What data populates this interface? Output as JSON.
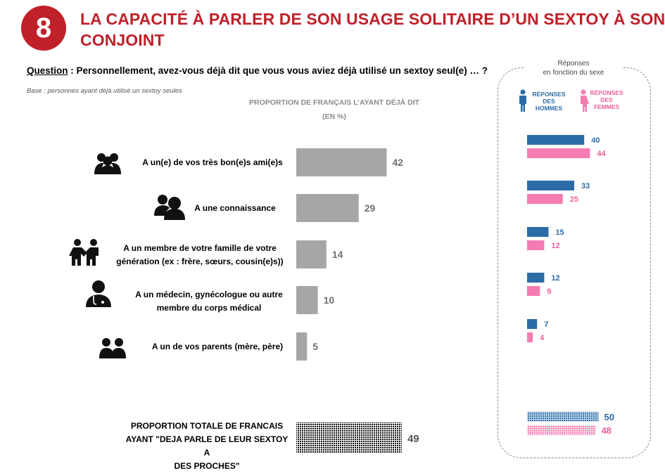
{
  "header": {
    "number": "8",
    "title_line1": "LA CAPACITÉ À PARLER DE SON USAGE SOLITAIRE D’UN SEXTOY À SON",
    "title_line2": "CONJOINT"
  },
  "question": {
    "label": "Question",
    "text": " : Personnellement, avez-vous déjà dit que vous vous aviez déjà utilisé un sextoy seul(e) … ?"
  },
  "base": "Base : personnes ayant déjà utilisé un sextoy seules",
  "chart_header": {
    "line1": "PROPORTION DE FRANÇAIS L’AYANT DÉJÀ DIT",
    "line2": "(EN %)"
  },
  "side_panel": {
    "title_line1": "Réponses",
    "title_line2": "en fonction du sexe",
    "legend_men": [
      "RÉPONSES",
      "DES",
      "HOMMES"
    ],
    "legend_women": [
      "RÉPONSES",
      "DES",
      "FEMMES"
    ]
  },
  "total": {
    "label_line1": "PROPORTION TOTALE DE FRANCAIS",
    "label_line2": "AYANT \"DEJA PARLE DE LEUR SEXTOY A",
    "label_line3": "DES PROCHES\""
  },
  "colors": {
    "brand_red": "#c0202a",
    "bar_gray": "#a6a6a6",
    "men_blue": "#2b6ca6",
    "women_pink": "#f47cb0"
  },
  "chart_data": [
    {
      "type": "bar",
      "orientation": "horizontal",
      "title": "PROPORTION DE FRANÇAIS L’AYANT DÉJÀ DIT (EN %)",
      "categories": [
        {
          "line1": "A un(e) de vos très bon(e)s ami(e)s",
          "line2": "",
          "icon": "friends-group-icon"
        },
        {
          "line1": "A une connaissance",
          "line2": "",
          "icon": "acquaintance-icon"
        },
        {
          "line1": "A un membre de votre famille de votre",
          "line2": "génération (ex : frère, sœurs, cousin(e)s))",
          "icon": "siblings-icon"
        },
        {
          "line1": "A un médecin, gynécologue ou autre",
          "line2": "membre du corps médical",
          "icon": "doctor-icon"
        },
        {
          "line1": "A un de vos parents (mère, père)",
          "line2": "",
          "icon": "parents-icon"
        }
      ],
      "values": [
        42,
        29,
        14,
        10,
        5
      ],
      "total_value": 49,
      "xlim": [
        0,
        100
      ]
    },
    {
      "type": "bar",
      "orientation": "horizontal",
      "title": "Réponses en fonction du sexe",
      "series": [
        {
          "name": "RÉPONSES DES HOMMES",
          "values": [
            40,
            33,
            15,
            12,
            7
          ],
          "total": 50
        },
        {
          "name": "RÉPONSES DES FEMMES",
          "values": [
            44,
            25,
            12,
            9,
            4
          ],
          "total": 48
        }
      ],
      "xlim": [
        0,
        100
      ]
    }
  ]
}
